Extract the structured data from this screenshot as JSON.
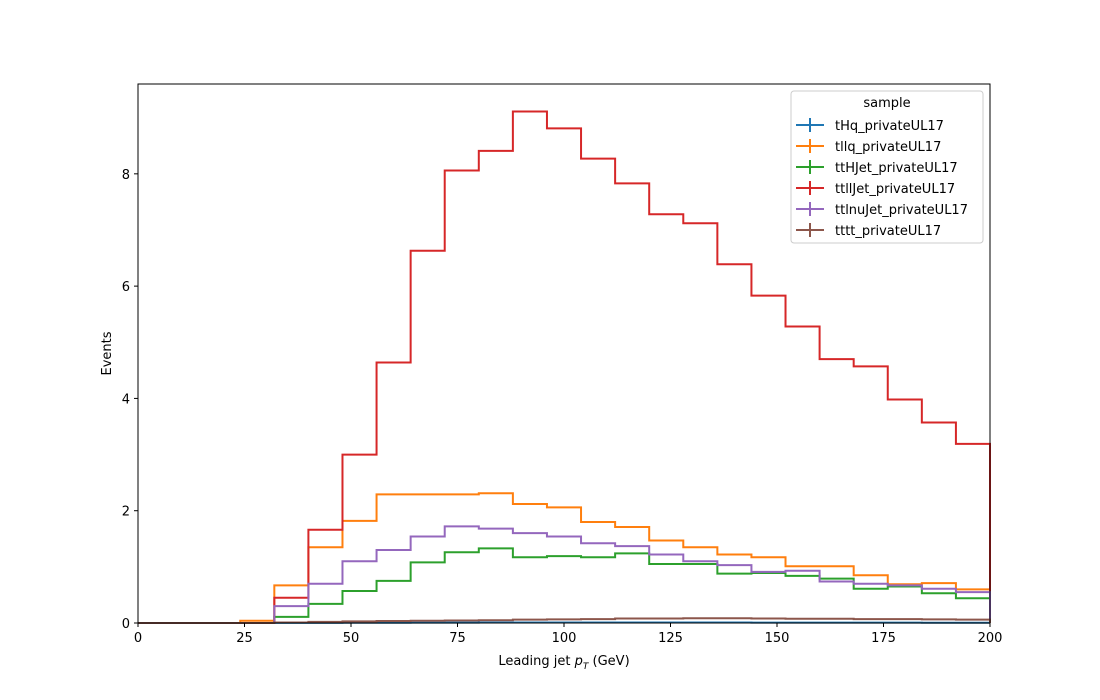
{
  "chart_data": {
    "type": "histogram-step",
    "xlabel_main": "Leading jet  ",
    "xlabel_var": "p",
    "xlabel_sub": "T",
    "xlabel_unit": " (GeV)",
    "ylabel": "Events",
    "xlim": [
      0,
      200
    ],
    "ylim": [
      0,
      9.6
    ],
    "x_ticks": [
      0,
      25,
      50,
      75,
      100,
      125,
      150,
      175,
      200
    ],
    "y_ticks": [
      0,
      2,
      4,
      6,
      8
    ],
    "grid": false,
    "legend": {
      "title": "sample",
      "placement": "top-right"
    },
    "bin_edges": [
      0,
      8,
      16,
      24,
      32,
      40,
      48,
      56,
      64,
      72,
      80,
      88,
      96,
      104,
      112,
      120,
      128,
      136,
      144,
      152,
      160,
      168,
      176,
      184,
      192,
      200
    ],
    "series": [
      {
        "name": "tHq_privateUL17",
        "color": "#1f77b4",
        "values": [
          0,
          0,
          0,
          0,
          0.002,
          0.003,
          0.004,
          0.005,
          0.006,
          0.007,
          0.008,
          0.008,
          0.009,
          0.009,
          0.009,
          0.008,
          0.008,
          0.008,
          0.007,
          0.007,
          0.006,
          0.006,
          0.006,
          0.005,
          0.005
        ]
      },
      {
        "name": "tllq_privateUL17",
        "color": "#ff7f0e",
        "values": [
          0,
          0,
          0,
          0.04,
          0.67,
          1.35,
          1.82,
          2.29,
          2.29,
          2.29,
          2.31,
          2.12,
          2.06,
          1.8,
          1.71,
          1.47,
          1.35,
          1.22,
          1.17,
          1.01,
          1.01,
          0.85,
          0.69,
          0.71,
          0.6
        ]
      },
      {
        "name": "ttHJet_privateUL17",
        "color": "#2ca02c",
        "values": [
          0,
          0,
          0,
          0,
          0.11,
          0.34,
          0.57,
          0.75,
          1.08,
          1.26,
          1.33,
          1.17,
          1.19,
          1.17,
          1.24,
          1.05,
          1.05,
          0.88,
          0.89,
          0.84,
          0.79,
          0.61,
          0.65,
          0.53,
          0.44
        ]
      },
      {
        "name": "ttllJet_privateUL17",
        "color": "#d62728",
        "values": [
          0,
          0,
          0,
          0,
          0.45,
          1.66,
          3.0,
          4.64,
          6.63,
          8.06,
          8.41,
          9.11,
          8.81,
          8.27,
          7.83,
          7.28,
          7.12,
          6.39,
          5.83,
          5.28,
          4.7,
          4.57,
          3.98,
          3.57,
          3.19
        ]
      },
      {
        "name": "ttlnuJet_privateUL17",
        "color": "#9467bd",
        "values": [
          0,
          0,
          0,
          0,
          0.3,
          0.7,
          1.1,
          1.3,
          1.54,
          1.72,
          1.68,
          1.6,
          1.54,
          1.42,
          1.37,
          1.22,
          1.1,
          1.03,
          0.91,
          0.93,
          0.74,
          0.7,
          0.67,
          0.61,
          0.55
        ]
      },
      {
        "name": "tttt_privateUL17",
        "color": "#8c564b",
        "values": [
          0,
          0,
          0,
          0,
          0.01,
          0.02,
          0.03,
          0.035,
          0.04,
          0.045,
          0.05,
          0.06,
          0.065,
          0.07,
          0.08,
          0.08,
          0.085,
          0.085,
          0.08,
          0.075,
          0.075,
          0.07,
          0.07,
          0.065,
          0.06
        ]
      }
    ]
  }
}
